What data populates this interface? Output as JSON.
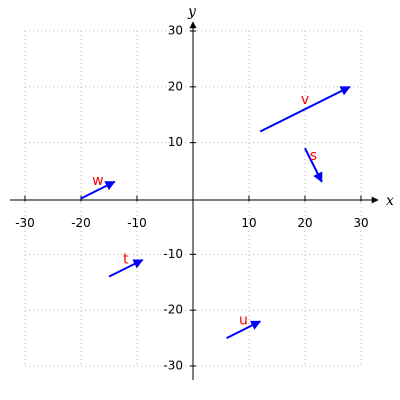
{
  "chart_data": {
    "type": "vector",
    "x_label": "x",
    "y_label": "y",
    "xlim": [
      -30,
      30
    ],
    "ylim": [
      -30,
      30
    ],
    "xticks": [
      -30,
      -20,
      -10,
      10,
      20,
      30
    ],
    "yticks": [
      -30,
      -20,
      -10,
      10,
      20,
      30
    ],
    "grid": true,
    "color": "#0000ff",
    "label_color": "#ff0000",
    "vectors": [
      {
        "name": "v",
        "x0": 12,
        "y0": 12,
        "x1": 28,
        "y1": 20
      },
      {
        "name": "s",
        "x0": 20,
        "y0": 9,
        "x1": 23,
        "y1": 3
      },
      {
        "name": "w",
        "x0": -20,
        "y0": 0,
        "x1": -14,
        "y1": 3
      },
      {
        "name": "t",
        "x0": -15,
        "y0": -14,
        "x1": -9,
        "y1": -11
      },
      {
        "name": "u",
        "x0": 6,
        "y0": -25,
        "x1": 12,
        "y1": -22
      }
    ]
  }
}
